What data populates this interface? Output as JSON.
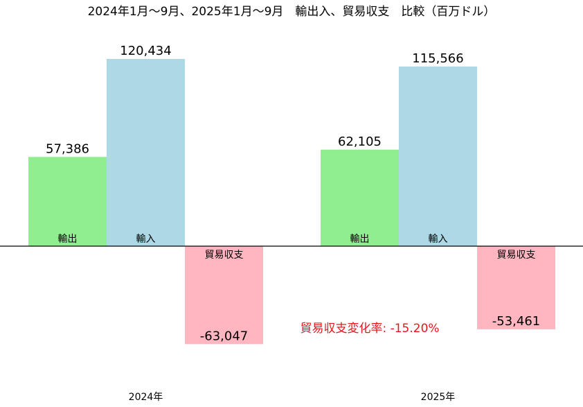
{
  "chart_data": {
    "type": "bar",
    "title": "2024年1月～9月、2025年1月～9月　輸出入、貿易収支　比較（百万ドル）",
    "categories": [
      "2024年",
      "2025年"
    ],
    "series": [
      {
        "name": "輸出",
        "values": [
          57386,
          62105
        ],
        "color": "#90ee90"
      },
      {
        "name": "輸入",
        "values": [
          120434,
          115566
        ],
        "color": "#add8e6"
      },
      {
        "name": "貿易収支",
        "values": [
          -63047,
          -53461
        ],
        "color": "#ffb6c1"
      }
    ],
    "value_labels": [
      [
        "57,386",
        "62,105"
      ],
      [
        "120,434",
        "115,566"
      ],
      [
        "-63,047",
        "-53,461"
      ]
    ],
    "annotation": {
      "text": "貿易収支変化率: -15.20%",
      "color": "#e8161b"
    },
    "ylim": [
      -103000,
      130800
    ],
    "grid": false,
    "legend": "none"
  }
}
